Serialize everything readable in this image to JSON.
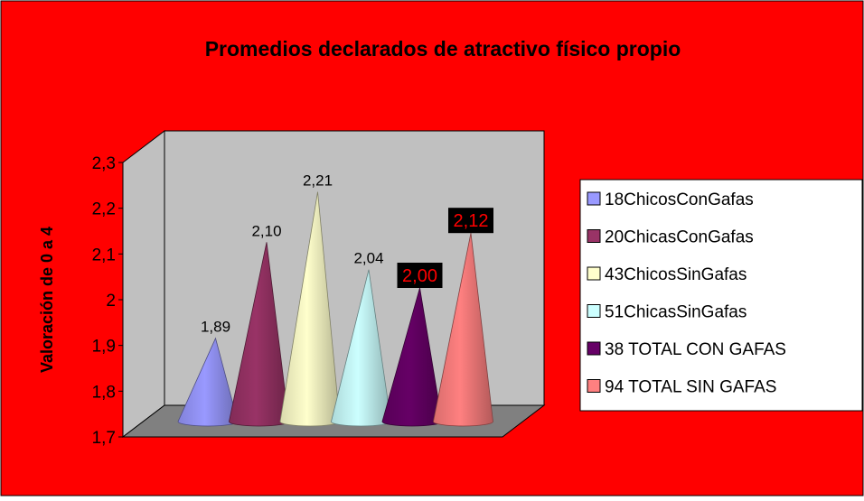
{
  "chart_data": {
    "type": "bar",
    "bar_shape": "3d-cone",
    "title": "Promedios declarados de atractivo físico propio",
    "xlabel": "",
    "ylabel": "Valoración de 0 a 4",
    "ylim": [
      1.7,
      2.3
    ],
    "y_ticks": [
      "1,7",
      "1,8",
      "1,9",
      "2",
      "2,1",
      "2,2",
      "2,3"
    ],
    "gridlines": false,
    "legend_position": "right",
    "colors": {
      "page_background": "#ff0000",
      "plot_wall": "#c0c0c0",
      "plot_floor": "#808080",
      "highlight_label_background": "#000000",
      "highlight_label_text": "#ff0000"
    },
    "series": [
      {
        "name": "18ChicosConGafas",
        "value": 1.89,
        "label": "1,89",
        "color": "#9999ff",
        "highlighted": false
      },
      {
        "name": "20ChicasConGafas",
        "value": 2.1,
        "label": "2,10",
        "color": "#993366",
        "highlighted": false
      },
      {
        "name": "43ChicosSinGafas",
        "value": 2.21,
        "label": "2,21",
        "color": "#ffffcc",
        "highlighted": false
      },
      {
        "name": "51ChicasSinGafas",
        "value": 2.04,
        "label": "2,04",
        "color": "#ccffff",
        "highlighted": false
      },
      {
        "name": "38 TOTAL CON GAFAS",
        "value": 2.0,
        "label": "2,00",
        "color": "#660066",
        "highlighted": true
      },
      {
        "name": "94 TOTAL SIN GAFAS",
        "value": 2.12,
        "label": "2,12",
        "color": "#ff8080",
        "highlighted": true
      }
    ]
  }
}
